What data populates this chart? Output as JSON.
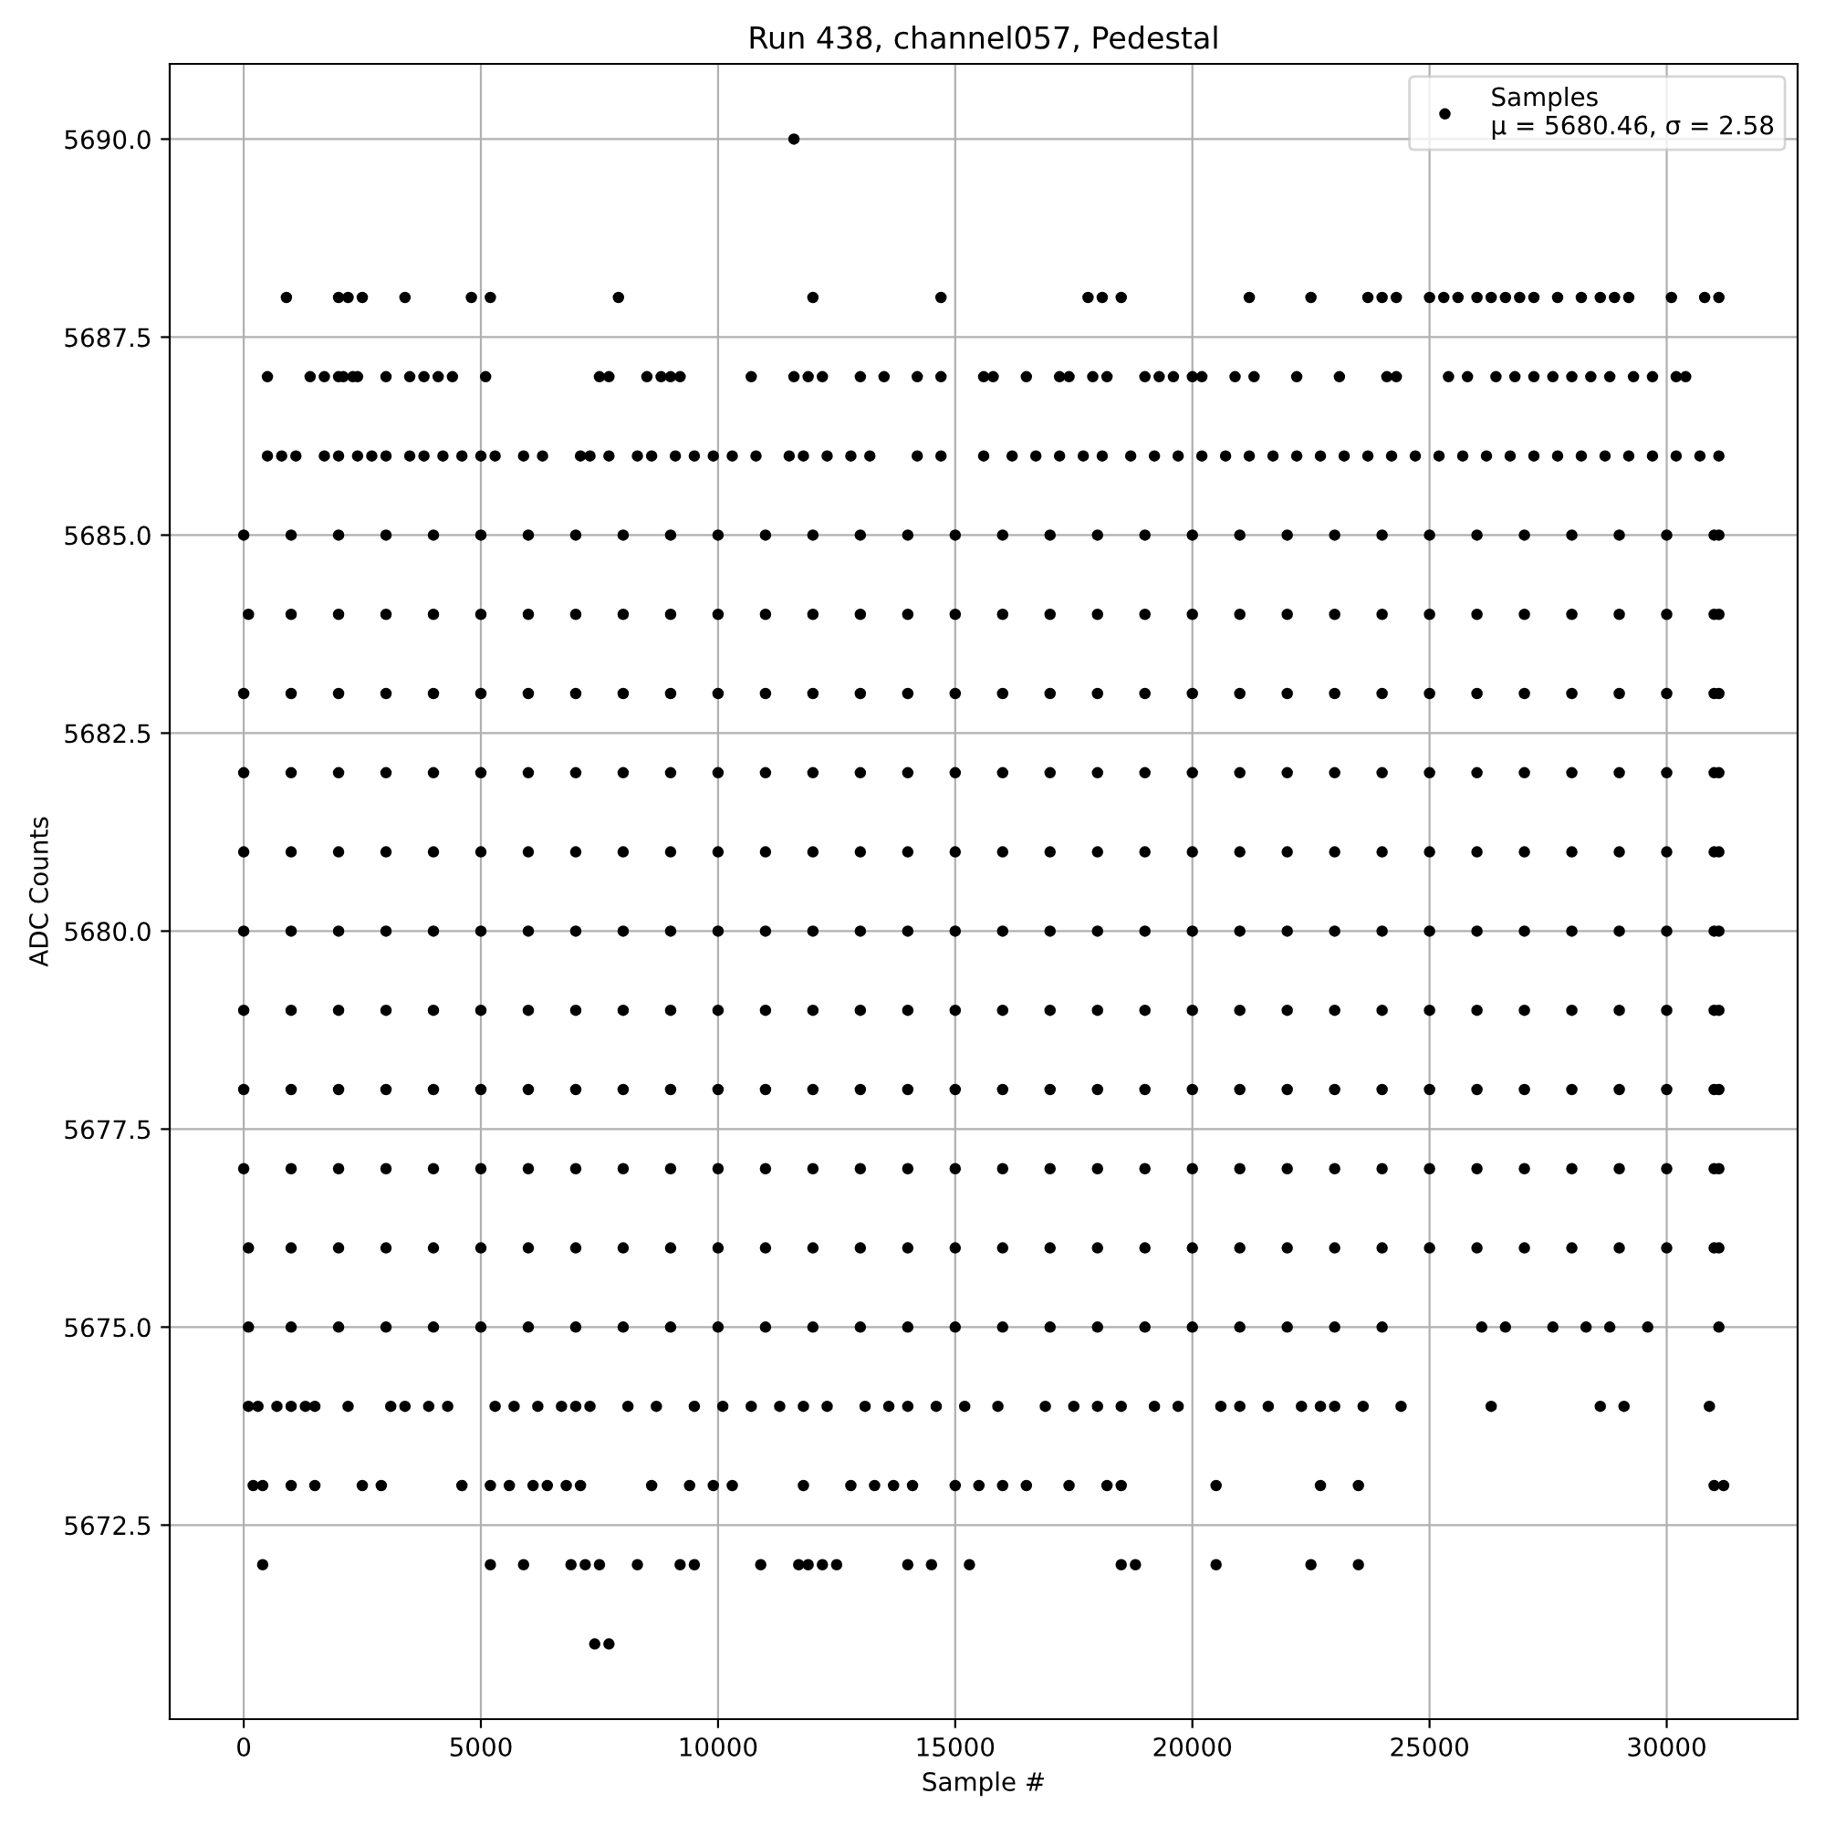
{
  "chart_data": {
    "type": "scatter",
    "title": "Run 438, channel057, Pedestal",
    "xlabel": "Sample #",
    "ylabel": "ADC Counts",
    "xlim": [
      -1560,
      32760
    ],
    "ylim": [
      5670.05,
      5690.95
    ],
    "xticks": [
      0,
      5000,
      10000,
      15000,
      20000,
      25000,
      30000
    ],
    "yticks": [
      {
        "value": 5672.5,
        "label": "5672.5"
      },
      {
        "value": 5675,
        "label": "5675.0"
      },
      {
        "value": 5677.5,
        "label": "5677.5"
      },
      {
        "value": 5680,
        "label": "5680.0"
      },
      {
        "value": 5682.5,
        "label": "5682.5"
      },
      {
        "value": 5685,
        "label": "5685.0"
      },
      {
        "value": 5687.5,
        "label": "5687.5"
      },
      {
        "value": 5690,
        "label": "5690.0"
      }
    ],
    "grid": true,
    "legend": "top right",
    "marker": "circle",
    "series": [
      {
        "name": "Samples\nμ = 5680.46, σ = 2.58",
        "color": "#000000",
        "x": [
          11600,
          900,
          2000,
          2200,
          2500,
          3400,
          4800,
          5200,
          7900,
          12000,
          14700,
          17800,
          18100,
          18500,
          21200,
          22500,
          23700,
          24000,
          24300,
          25000,
          25300,
          25600,
          26000,
          26300,
          26600,
          26900,
          27200,
          27700,
          28200,
          28600,
          28900,
          29200,
          30100,
          30800,
          31100,
          500,
          1400,
          1700,
          2000,
          2100,
          2300,
          2400,
          3000,
          3500,
          3800,
          4100,
          4400,
          5100,
          7500,
          7700,
          8500,
          8800,
          9000,
          9200,
          10700,
          11600,
          11900,
          12200,
          13000,
          13500,
          14200,
          14700,
          15600,
          15800,
          16500,
          17200,
          17400,
          17900,
          18200,
          19000,
          19300,
          19600,
          20000,
          20200,
          20900,
          21300,
          22200,
          23100,
          24100,
          24300,
          25400,
          25800,
          26400,
          26800,
          27200,
          27600,
          28000,
          28400,
          28800,
          29300,
          29700,
          30200,
          30400,
          500,
          800,
          1100,
          1700,
          2000,
          2400,
          2700,
          3000,
          3500,
          3800,
          4200,
          4600,
          5000,
          5300,
          5900,
          6300,
          7100,
          7300,
          7700,
          8300,
          8600,
          9100,
          9500,
          9900,
          10300,
          10800,
          11500,
          11800,
          12300,
          12800,
          13200,
          14200,
          14700,
          15600,
          16200,
          16700,
          17200,
          17700,
          18100,
          18700,
          19200,
          19700,
          20200,
          20700,
          21200,
          21700,
          22200,
          22700,
          23200,
          23700,
          24200,
          24700,
          25200,
          25700,
          26200,
          26700,
          27200,
          27700,
          28200,
          28700,
          29200,
          29700,
          30200,
          30700,
          31100,
          0,
          1000,
          2000,
          3000,
          4000,
          5000,
          6000,
          7000,
          8000,
          9000,
          10000,
          11000,
          12000,
          13000,
          14000,
          15000,
          16000,
          17000,
          18000,
          19000,
          20000,
          21000,
          22000,
          23000,
          24000,
          25000,
          26000,
          27000,
          28000,
          29000,
          30000,
          31000,
          31100,
          100,
          1000,
          2000,
          3000,
          4000,
          5000,
          6000,
          7000,
          8000,
          9000,
          10000,
          11000,
          12000,
          13000,
          14000,
          15000,
          16000,
          17000,
          18000,
          19000,
          20000,
          21000,
          22000,
          23000,
          24000,
          25000,
          26000,
          27000,
          28000,
          29000,
          30000,
          31000,
          31100,
          0,
          1000,
          2000,
          3000,
          4000,
          5000,
          6000,
          7000,
          8000,
          9000,
          10000,
          11000,
          12000,
          13000,
          14000,
          15000,
          16000,
          17000,
          18000,
          19000,
          20000,
          21000,
          22000,
          23000,
          24000,
          25000,
          26000,
          27000,
          28000,
          29000,
          30000,
          31000,
          31100,
          0,
          1000,
          2000,
          3000,
          4000,
          5000,
          6000,
          7000,
          8000,
          9000,
          10000,
          11000,
          12000,
          13000,
          14000,
          15000,
          16000,
          17000,
          18000,
          19000,
          20000,
          21000,
          22000,
          23000,
          24000,
          25000,
          26000,
          27000,
          28000,
          29000,
          30000,
          31000,
          31100,
          0,
          1000,
          2000,
          3000,
          4000,
          5000,
          6000,
          7000,
          8000,
          9000,
          10000,
          11000,
          12000,
          13000,
          14000,
          15000,
          16000,
          17000,
          18000,
          19000,
          20000,
          21000,
          22000,
          23000,
          24000,
          25000,
          26000,
          27000,
          28000,
          29000,
          30000,
          31000,
          31100,
          0,
          1000,
          2000,
          3000,
          4000,
          5000,
          6000,
          7000,
          8000,
          9000,
          10000,
          11000,
          12000,
          13000,
          14000,
          15000,
          16000,
          17000,
          18000,
          19000,
          20000,
          21000,
          22000,
          23000,
          24000,
          25000,
          26000,
          27000,
          28000,
          29000,
          30000,
          31000,
          31100,
          0,
          1000,
          2000,
          3000,
          4000,
          5000,
          6000,
          7000,
          8000,
          9000,
          10000,
          11000,
          12000,
          13000,
          14000,
          15000,
          16000,
          17000,
          18000,
          19000,
          20000,
          21000,
          22000,
          23000,
          24000,
          25000,
          26000,
          27000,
          28000,
          29000,
          30000,
          31000,
          31100,
          0,
          1000,
          2000,
          3000,
          4000,
          5000,
          6000,
          7000,
          8000,
          9000,
          10000,
          11000,
          12000,
          13000,
          14000,
          15000,
          16000,
          17000,
          18000,
          19000,
          20000,
          21000,
          22000,
          23000,
          24000,
          25000,
          26000,
          27000,
          28000,
          29000,
          30000,
          31000,
          31100,
          0,
          1000,
          2000,
          3000,
          4000,
          5000,
          6000,
          7000,
          8000,
          9000,
          10000,
          11000,
          12000,
          13000,
          14000,
          15000,
          16000,
          17000,
          18000,
          19000,
          20000,
          21000,
          22000,
          23000,
          24000,
          25000,
          26000,
          27000,
          28000,
          29000,
          30000,
          31000,
          31100,
          100,
          1000,
          2000,
          3000,
          4000,
          5000,
          6000,
          7000,
          8000,
          9000,
          10000,
          11000,
          12000,
          13000,
          14000,
          15000,
          16000,
          17000,
          18000,
          19000,
          20000,
          21000,
          22000,
          23000,
          24000,
          25000,
          26000,
          27000,
          28000,
          29000,
          30000,
          31000,
          31100,
          100,
          1000,
          2000,
          3000,
          4000,
          5000,
          6000,
          7000,
          8000,
          9000,
          10000,
          11000,
          12000,
          13000,
          14000,
          15000,
          16000,
          17000,
          18000,
          19000,
          20000,
          21000,
          22000,
          23000,
          24000,
          26100,
          26600,
          27600,
          28300,
          28800,
          29600,
          31100,
          100,
          300,
          700,
          1000,
          1300,
          1500,
          2200,
          3100,
          3400,
          3900,
          4300,
          5300,
          5700,
          6200,
          6700,
          7000,
          7300,
          8100,
          8700,
          9500,
          10100,
          10700,
          11300,
          11800,
          12300,
          13100,
          13600,
          14000,
          14600,
          15200,
          15900,
          16900,
          17500,
          18000,
          18500,
          19200,
          19700,
          20600,
          21000,
          21600,
          22300,
          22700,
          23000,
          23600,
          24400,
          26300,
          28600,
          29100,
          30900,
          200,
          400,
          1000,
          1500,
          2500,
          2900,
          4600,
          5200,
          5600,
          6100,
          6400,
          6800,
          7100,
          8600,
          9400,
          9900,
          10300,
          11800,
          12800,
          13300,
          13700,
          14100,
          15000,
          15500,
          16000,
          16500,
          17400,
          18200,
          18500,
          20500,
          22700,
          23500,
          31000,
          31200,
          400,
          5200,
          5900,
          6900,
          7200,
          7500,
          8300,
          9200,
          9500,
          10900,
          11700,
          11900,
          12200,
          12500,
          14000,
          14500,
          15300,
          18500,
          18800,
          20500,
          22500,
          23500,
          7400,
          7700
        ],
        "values": [
          5690,
          5688,
          5688,
          5688,
          5688,
          5688,
          5688,
          5688,
          5688,
          5688,
          5688,
          5688,
          5688,
          5688,
          5688,
          5688,
          5688,
          5688,
          5688,
          5688,
          5688,
          5688,
          5688,
          5688,
          5688,
          5688,
          5688,
          5688,
          5688,
          5688,
          5688,
          5688,
          5688,
          5688,
          5688,
          5687,
          5687,
          5687,
          5687,
          5687,
          5687,
          5687,
          5687,
          5687,
          5687,
          5687,
          5687,
          5687,
          5687,
          5687,
          5687,
          5687,
          5687,
          5687,
          5687,
          5687,
          5687,
          5687,
          5687,
          5687,
          5687,
          5687,
          5687,
          5687,
          5687,
          5687,
          5687,
          5687,
          5687,
          5687,
          5687,
          5687,
          5687,
          5687,
          5687,
          5687,
          5687,
          5687,
          5687,
          5687,
          5687,
          5687,
          5687,
          5687,
          5687,
          5687,
          5687,
          5687,
          5687,
          5687,
          5687,
          5687,
          5687,
          5686,
          5686,
          5686,
          5686,
          5686,
          5686,
          5686,
          5686,
          5686,
          5686,
          5686,
          5686,
          5686,
          5686,
          5686,
          5686,
          5686,
          5686,
          5686,
          5686,
          5686,
          5686,
          5686,
          5686,
          5686,
          5686,
          5686,
          5686,
          5686,
          5686,
          5686,
          5686,
          5686,
          5686,
          5686,
          5686,
          5686,
          5686,
          5686,
          5686,
          5686,
          5686,
          5686,
          5686,
          5686,
          5686,
          5686,
          5686,
          5686,
          5686,
          5686,
          5686,
          5686,
          5686,
          5686,
          5686,
          5686,
          5686,
          5686,
          5686,
          5686,
          5686,
          5686,
          5686,
          5686,
          5685,
          5685,
          5685,
          5685,
          5685,
          5685,
          5685,
          5685,
          5685,
          5685,
          5685,
          5685,
          5685,
          5685,
          5685,
          5685,
          5685,
          5685,
          5685,
          5685,
          5685,
          5685,
          5685,
          5685,
          5685,
          5685,
          5685,
          5685,
          5685,
          5685,
          5685,
          5685,
          5685,
          5684,
          5684,
          5684,
          5684,
          5684,
          5684,
          5684,
          5684,
          5684,
          5684,
          5684,
          5684,
          5684,
          5684,
          5684,
          5684,
          5684,
          5684,
          5684,
          5684,
          5684,
          5684,
          5684,
          5684,
          5684,
          5684,
          5684,
          5684,
          5684,
          5684,
          5684,
          5684,
          5684,
          5683,
          5683,
          5683,
          5683,
          5683,
          5683,
          5683,
          5683,
          5683,
          5683,
          5683,
          5683,
          5683,
          5683,
          5683,
          5683,
          5683,
          5683,
          5683,
          5683,
          5683,
          5683,
          5683,
          5683,
          5683,
          5683,
          5683,
          5683,
          5683,
          5683,
          5683,
          5683,
          5683,
          5682,
          5682,
          5682,
          5682,
          5682,
          5682,
          5682,
          5682,
          5682,
          5682,
          5682,
          5682,
          5682,
          5682,
          5682,
          5682,
          5682,
          5682,
          5682,
          5682,
          5682,
          5682,
          5682,
          5682,
          5682,
          5682,
          5682,
          5682,
          5682,
          5682,
          5682,
          5682,
          5682,
          5681,
          5681,
          5681,
          5681,
          5681,
          5681,
          5681,
          5681,
          5681,
          5681,
          5681,
          5681,
          5681,
          5681,
          5681,
          5681,
          5681,
          5681,
          5681,
          5681,
          5681,
          5681,
          5681,
          5681,
          5681,
          5681,
          5681,
          5681,
          5681,
          5681,
          5681,
          5681,
          5681,
          5680,
          5680,
          5680,
          5680,
          5680,
          5680,
          5680,
          5680,
          5680,
          5680,
          5680,
          5680,
          5680,
          5680,
          5680,
          5680,
          5680,
          5680,
          5680,
          5680,
          5680,
          5680,
          5680,
          5680,
          5680,
          5680,
          5680,
          5680,
          5680,
          5680,
          5680,
          5680,
          5680,
          5679,
          5679,
          5679,
          5679,
          5679,
          5679,
          5679,
          5679,
          5679,
          5679,
          5679,
          5679,
          5679,
          5679,
          5679,
          5679,
          5679,
          5679,
          5679,
          5679,
          5679,
          5679,
          5679,
          5679,
          5679,
          5679,
          5679,
          5679,
          5679,
          5679,
          5679,
          5679,
          5679,
          5678,
          5678,
          5678,
          5678,
          5678,
          5678,
          5678,
          5678,
          5678,
          5678,
          5678,
          5678,
          5678,
          5678,
          5678,
          5678,
          5678,
          5678,
          5678,
          5678,
          5678,
          5678,
          5678,
          5678,
          5678,
          5678,
          5678,
          5678,
          5678,
          5678,
          5678,
          5678,
          5678,
          5677,
          5677,
          5677,
          5677,
          5677,
          5677,
          5677,
          5677,
          5677,
          5677,
          5677,
          5677,
          5677,
          5677,
          5677,
          5677,
          5677,
          5677,
          5677,
          5677,
          5677,
          5677,
          5677,
          5677,
          5677,
          5677,
          5677,
          5677,
          5677,
          5677,
          5677,
          5677,
          5677,
          5676,
          5676,
          5676,
          5676,
          5676,
          5676,
          5676,
          5676,
          5676,
          5676,
          5676,
          5676,
          5676,
          5676,
          5676,
          5676,
          5676,
          5676,
          5676,
          5676,
          5676,
          5676,
          5676,
          5676,
          5676,
          5676,
          5676,
          5676,
          5676,
          5676,
          5676,
          5676,
          5676,
          5675,
          5675,
          5675,
          5675,
          5675,
          5675,
          5675,
          5675,
          5675,
          5675,
          5675,
          5675,
          5675,
          5675,
          5675,
          5675,
          5675,
          5675,
          5675,
          5675,
          5675,
          5675,
          5675,
          5675,
          5675,
          5675,
          5675,
          5675,
          5675,
          5675,
          5675,
          5675,
          5674,
          5674,
          5674,
          5674,
          5674,
          5674,
          5674,
          5674,
          5674,
          5674,
          5674,
          5674,
          5674,
          5674,
          5674,
          5674,
          5674,
          5674,
          5674,
          5674,
          5674,
          5674,
          5674,
          5674,
          5674,
          5674,
          5674,
          5674,
          5674,
          5674,
          5674,
          5674,
          5674,
          5674,
          5674,
          5674,
          5674,
          5674,
          5674,
          5674,
          5674,
          5674,
          5674,
          5674,
          5674,
          5674,
          5674,
          5674,
          5674,
          5673,
          5673,
          5673,
          5673,
          5673,
          5673,
          5673,
          5673,
          5673,
          5673,
          5673,
          5673,
          5673,
          5673,
          5673,
          5673,
          5673,
          5673,
          5673,
          5673,
          5673,
          5673,
          5673,
          5673,
          5673,
          5673,
          5673,
          5673,
          5673,
          5673,
          5673,
          5673,
          5673,
          5673,
          5672,
          5672,
          5672,
          5672,
          5672,
          5672,
          5672,
          5672,
          5672,
          5672,
          5672,
          5672,
          5672,
          5672,
          5672,
          5672,
          5672,
          5672,
          5672,
          5672,
          5672,
          5672,
          5671,
          5671
        ]
      }
    ]
  }
}
